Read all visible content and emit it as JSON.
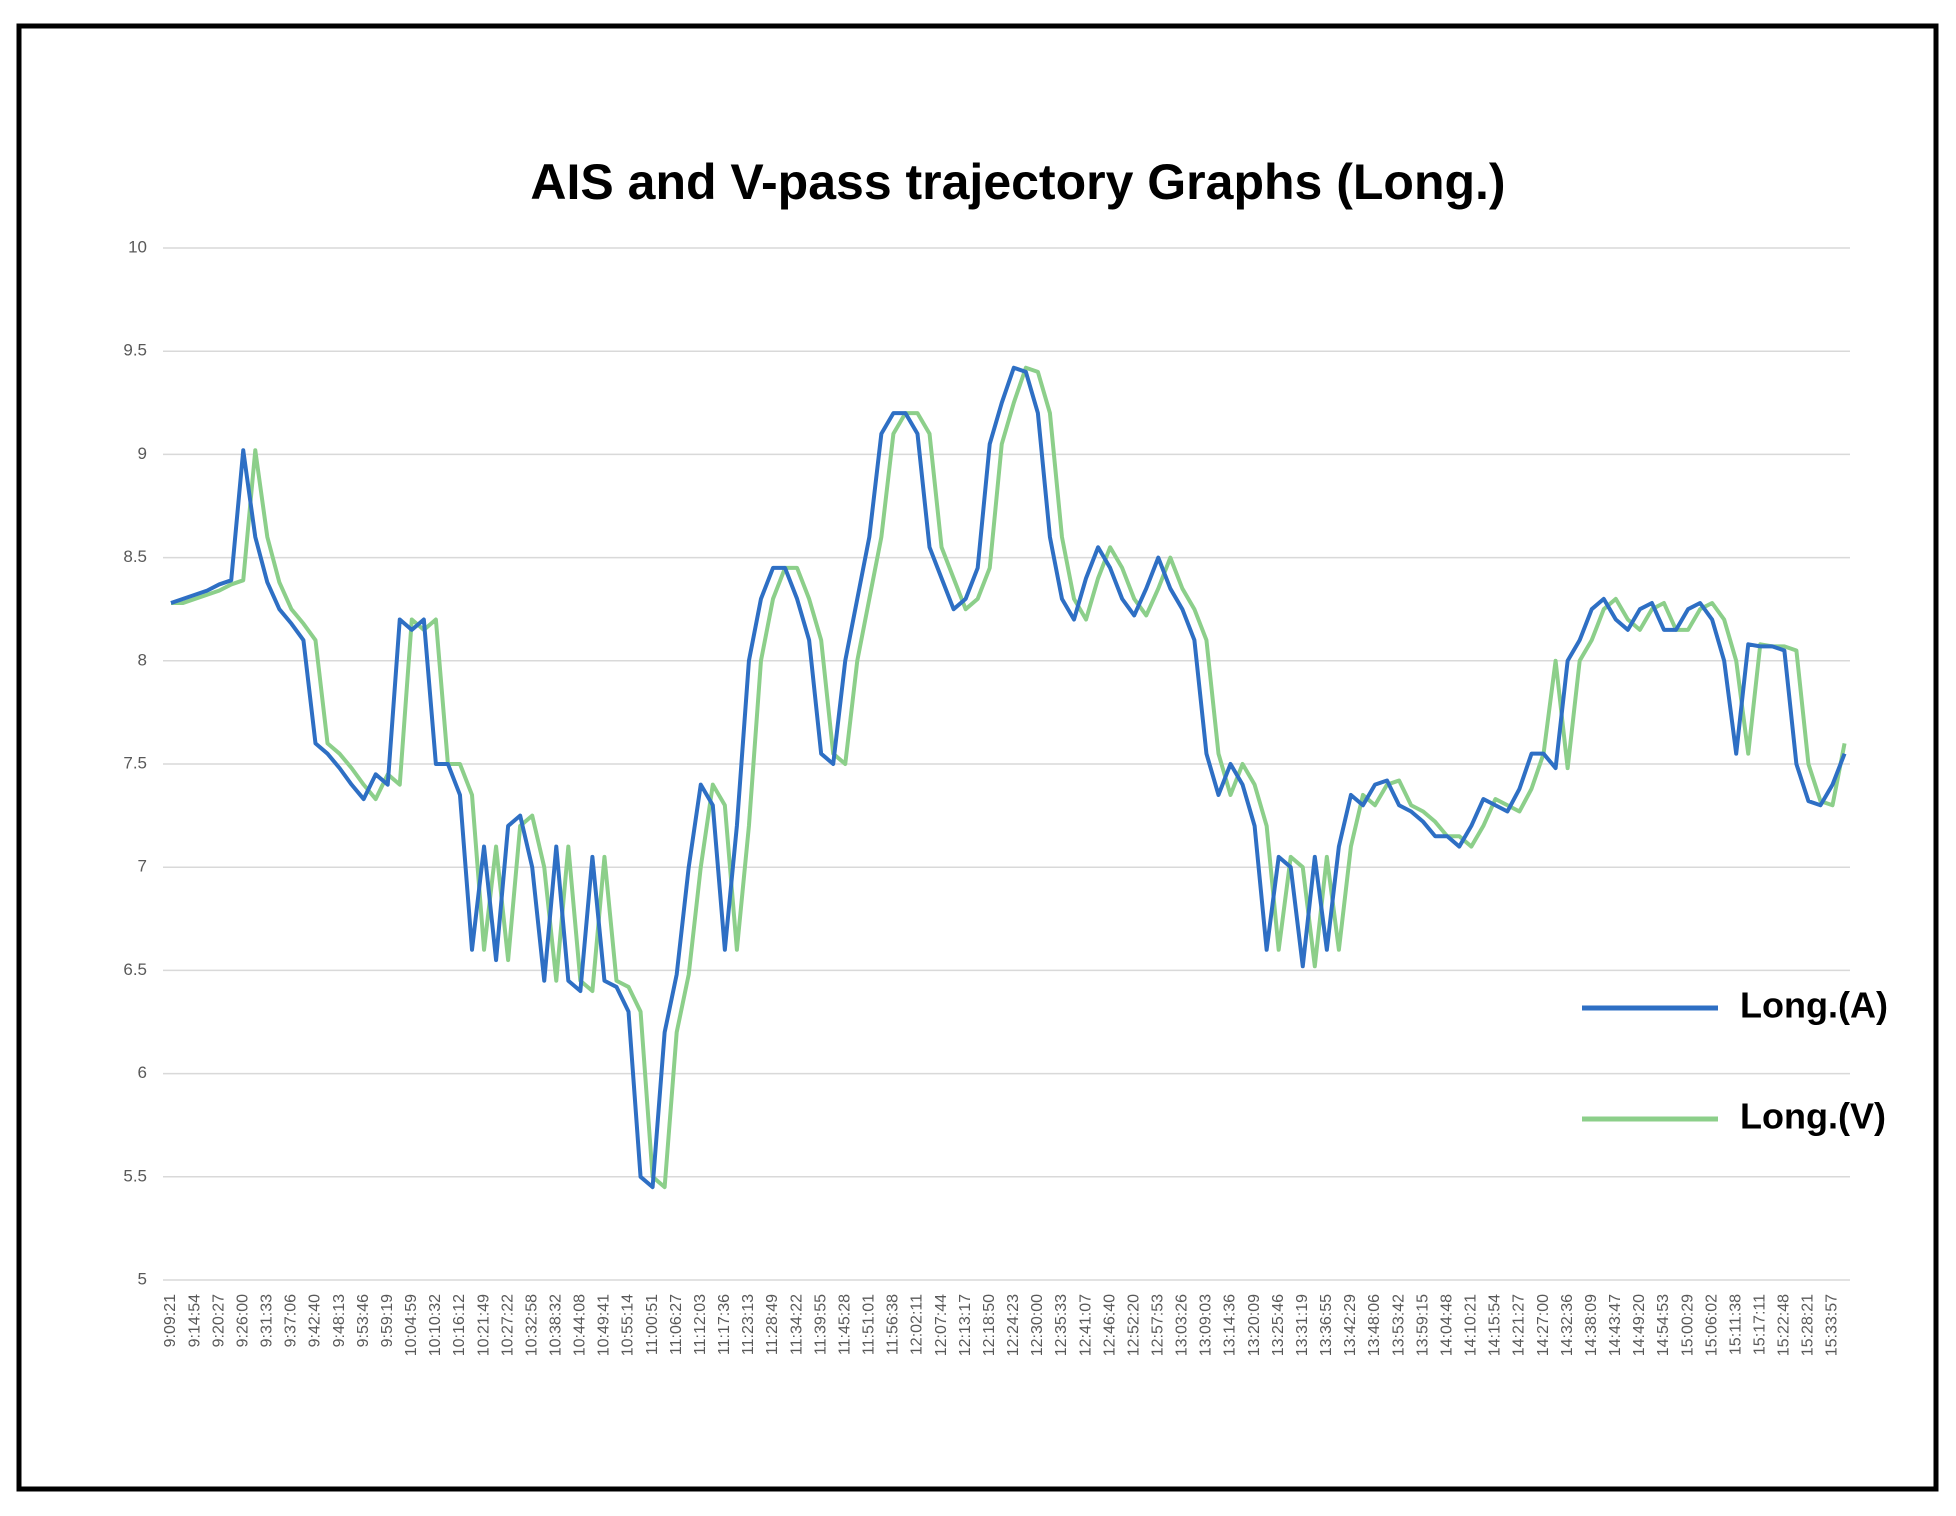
{
  "chart_data": {
    "type": "line",
    "title": "AIS and V-pass trajectory Graphs (Long.)",
    "categories": [
      "9:09:21",
      null,
      "9:14:54",
      null,
      "9:20:27",
      null,
      "9:26:00",
      null,
      "9:31:33",
      null,
      "9:37:06",
      null,
      "9:42:40",
      null,
      "9:48:13",
      null,
      "9:53:46",
      null,
      "9:59:19",
      null,
      "10:04:59",
      null,
      "10:10:32",
      null,
      "10:16:12",
      null,
      "10:21:49",
      null,
      "10:27:22",
      null,
      "10:32:58",
      null,
      "10:38:32",
      null,
      "10:44:08",
      null,
      "10:49:41",
      null,
      "10:55:14",
      null,
      "11:00:51",
      null,
      "11:06:27",
      null,
      "11:12:03",
      null,
      "11:17:36",
      null,
      "11:23:13",
      null,
      "11:28:49",
      null,
      "11:34:22",
      null,
      "11:39:55",
      null,
      "11:45:28",
      null,
      "11:51:01",
      null,
      "11:56:38",
      null,
      "12:02:11",
      null,
      "12:07:44",
      null,
      "12:13:17",
      null,
      "12:18:50",
      null,
      "12:24:23",
      null,
      "12:30:00",
      null,
      "12:35:33",
      null,
      "12:41:07",
      null,
      "12:46:40",
      null,
      "12:52:20",
      null,
      "12:57:53",
      null,
      "13:03:26",
      null,
      "13:09:03",
      null,
      "13:14:36",
      null,
      "13:20:09",
      null,
      "13:25:46",
      null,
      "13:31:19",
      null,
      "13:36:55",
      null,
      "13:42:29",
      null,
      "13:48:06",
      null,
      "13:53:42",
      null,
      "13:59:15",
      null,
      "14:04:48",
      null,
      "14:10:21",
      null,
      "14:15:54",
      null,
      "14:21:27",
      null,
      "14:27:00",
      null,
      "14:32:36",
      null,
      "14:38:09",
      null,
      "14:43:47",
      null,
      "14:49:20",
      null,
      "14:54:53",
      null,
      "15:00:29",
      null,
      "15:06:02",
      null,
      "15:11:38",
      null,
      "15:17:11",
      null,
      "15:22:48",
      null,
      "15:28:21",
      null,
      "15:33:57",
      null
    ],
    "series": [
      {
        "name": "Long.(A)",
        "color": "#2e6fc4",
        "values": [
          8.28,
          8.3,
          8.32,
          8.34,
          8.37,
          8.39,
          9.02,
          8.6,
          8.38,
          8.25,
          8.18,
          8.1,
          7.6,
          7.55,
          7.48,
          7.4,
          7.33,
          7.45,
          7.4,
          8.2,
          8.15,
          8.2,
          7.5,
          7.5,
          7.35,
          6.6,
          7.1,
          6.55,
          7.2,
          7.25,
          7.0,
          6.45,
          7.1,
          6.45,
          6.4,
          7.05,
          6.45,
          6.42,
          6.3,
          5.5,
          5.45,
          6.2,
          6.48,
          7.0,
          7.4,
          7.3,
          6.6,
          7.2,
          8.0,
          8.3,
          8.45,
          8.45,
          8.3,
          8.1,
          7.55,
          7.5,
          8.0,
          8.3,
          8.6,
          9.1,
          9.2,
          9.2,
          9.1,
          8.55,
          8.4,
          8.25,
          8.3,
          8.45,
          9.05,
          9.25,
          9.42,
          9.4,
          9.2,
          8.6,
          8.3,
          8.2,
          8.4,
          8.55,
          8.45,
          8.3,
          8.22,
          8.35,
          8.5,
          8.35,
          8.25,
          8.1,
          7.55,
          7.35,
          7.5,
          7.4,
          7.2,
          6.6,
          7.05,
          7.0,
          6.52,
          7.05,
          6.6,
          7.1,
          7.35,
          7.3,
          7.4,
          7.42,
          7.3,
          7.27,
          7.22,
          7.15,
          7.15,
          7.1,
          7.2,
          7.33,
          7.3,
          7.27,
          7.38,
          7.55,
          7.55,
          7.48,
          8.0,
          8.1,
          8.25,
          8.3,
          8.2,
          8.15,
          8.25,
          8.28,
          8.15,
          8.15,
          8.25,
          8.28,
          8.2,
          8.0,
          7.55,
          8.08,
          8.07,
          8.07,
          8.05,
          7.5,
          7.32,
          7.3,
          7.4,
          7.55
        ]
      },
      {
        "name": "Long.(V)",
        "color": "#8ccf8a",
        "values": [
          8.28,
          8.28,
          8.3,
          8.32,
          8.34,
          8.37,
          8.39,
          9.02,
          8.6,
          8.38,
          8.25,
          8.18,
          8.1,
          7.6,
          7.55,
          7.48,
          7.4,
          7.33,
          7.45,
          7.4,
          8.2,
          8.15,
          8.2,
          7.5,
          7.5,
          7.35,
          6.6,
          7.1,
          6.55,
          7.2,
          7.25,
          7.0,
          6.45,
          7.1,
          6.45,
          6.4,
          7.05,
          6.45,
          6.42,
          6.3,
          5.5,
          5.45,
          6.2,
          6.48,
          7.0,
          7.4,
          7.3,
          6.6,
          7.2,
          8.0,
          8.3,
          8.45,
          8.45,
          8.3,
          8.1,
          7.55,
          7.5,
          8.0,
          8.3,
          8.6,
          9.1,
          9.2,
          9.2,
          9.1,
          8.55,
          8.4,
          8.25,
          8.3,
          8.45,
          9.05,
          9.25,
          9.42,
          9.4,
          9.2,
          8.6,
          8.3,
          8.2,
          8.4,
          8.55,
          8.45,
          8.3,
          8.22,
          8.35,
          8.5,
          8.35,
          8.25,
          8.1,
          7.55,
          7.35,
          7.5,
          7.4,
          7.2,
          6.6,
          7.05,
          7.0,
          6.52,
          7.05,
          6.6,
          7.1,
          7.35,
          7.3,
          7.4,
          7.42,
          7.3,
          7.27,
          7.22,
          7.15,
          7.15,
          7.1,
          7.2,
          7.33,
          7.3,
          7.27,
          7.38,
          7.55,
          8.0,
          7.48,
          8.0,
          8.1,
          8.25,
          8.3,
          8.2,
          8.15,
          8.25,
          8.28,
          8.15,
          8.15,
          8.25,
          8.28,
          8.2,
          8.0,
          7.55,
          8.08,
          8.07,
          8.07,
          8.05,
          7.5,
          7.32,
          7.3,
          7.6
        ]
      }
    ],
    "ylim": [
      5,
      10
    ],
    "yticks": [
      5,
      5.5,
      6,
      6.5,
      7,
      7.5,
      8,
      8.5,
      9,
      9.5,
      10
    ],
    "grid": true,
    "legend": "right"
  }
}
